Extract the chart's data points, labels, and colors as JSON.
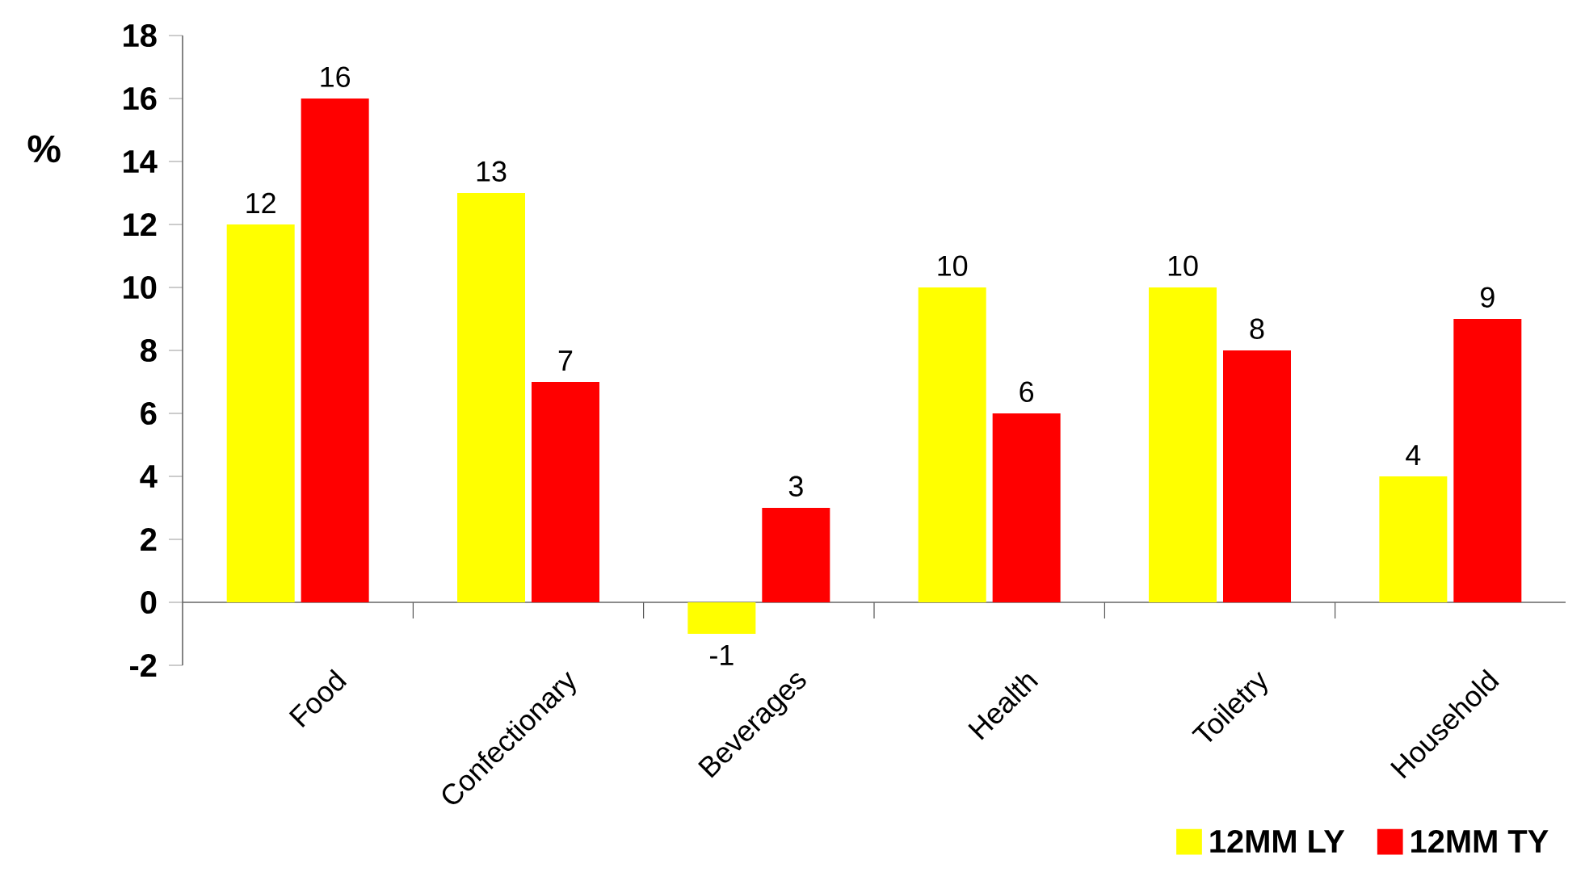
{
  "chart_data": {
    "type": "bar",
    "ylabel": "%",
    "categories": [
      "Food",
      "Confectionary",
      "Beverages",
      "Health",
      "Toiletry",
      "Household"
    ],
    "series": [
      {
        "name": "12MM LY",
        "color": "#ffff00",
        "values": [
          12,
          13,
          -1,
          10,
          10,
          4
        ]
      },
      {
        "name": "12MM TY",
        "color": "#ff0000",
        "values": [
          16,
          7,
          3,
          6,
          8,
          9
        ]
      }
    ],
    "ylim": [
      -2,
      18
    ],
    "yticks": [
      -2,
      0,
      2,
      4,
      6,
      8,
      10,
      12,
      14,
      16,
      18
    ],
    "data_labels": true,
    "legend": "bottom right"
  }
}
